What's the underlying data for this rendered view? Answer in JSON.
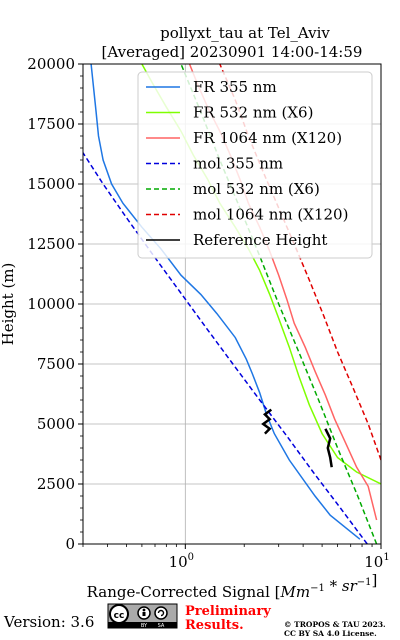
{
  "header": {
    "title_line1": "pollyxt_tau at Tel_Aviv",
    "title_line2": "[Averaged] 20230901 14:00-14:59"
  },
  "footer": {
    "version": "Version: 3.6",
    "cc_by": "BY",
    "cc_sa": "SA",
    "preliminary_line1": "Preliminary",
    "preliminary_line2": "Results.",
    "copyright_line1": "© TROPOS & TAU 2023.",
    "copyright_line2": "CC BY SA 4.0 License.",
    "preliminary_color": "#ff0000"
  },
  "chart_data": {
    "type": "line",
    "title": "pollyxt_tau at Tel_Aviv\n[Averaged] 20230901 14:00-14:59",
    "xlabel": "Range-Corrected Signal [Mm^-1 * sr^-1]",
    "ylabel": "Height (m)",
    "xscale": "log",
    "xlim": [
      0.3,
      10
    ],
    "ylim": [
      0,
      20000
    ],
    "x_major_ticks": [
      1,
      10
    ],
    "x_tick_labels": [
      "10^0",
      "10^1"
    ],
    "y_ticks": [
      0,
      2500,
      5000,
      7500,
      10000,
      12500,
      15000,
      17500,
      20000
    ],
    "y_tick_labels": [
      "0",
      "2500",
      "5000",
      "7500",
      "10000",
      "12500",
      "15000",
      "17500",
      "20000"
    ],
    "grid": true,
    "legend_position": "top-right",
    "series": [
      {
        "name": "FR 355 nm",
        "color": "#1f77e4",
        "style": "solid",
        "points": [
          [
            7.8,
            200
          ],
          [
            5.5,
            1200
          ],
          [
            4.6,
            2000
          ],
          [
            3.4,
            3500
          ],
          [
            2.85,
            4600
          ],
          [
            2.6,
            5400
          ],
          [
            2.4,
            6300
          ],
          [
            2.2,
            7100
          ],
          [
            2.05,
            7700
          ],
          [
            1.8,
            8600
          ],
          [
            1.45,
            9600
          ],
          [
            1.2,
            10400
          ],
          [
            0.95,
            11200
          ],
          [
            0.75,
            12300
          ],
          [
            0.6,
            13200
          ],
          [
            0.48,
            14200
          ],
          [
            0.42,
            15000
          ],
          [
            0.38,
            16000
          ],
          [
            0.36,
            17000
          ],
          [
            0.35,
            18000
          ],
          [
            0.34,
            19000
          ],
          [
            0.33,
            20000
          ]
        ]
      },
      {
        "name": "FR 532 nm (X6)",
        "color": "#7fff00",
        "style": "solid",
        "points": [
          [
            10,
            2500
          ],
          [
            7.5,
            3000
          ],
          [
            6.0,
            3600
          ],
          [
            5.0,
            4600
          ],
          [
            4.3,
            5800
          ],
          [
            3.8,
            7000
          ],
          [
            3.4,
            8200
          ],
          [
            3.0,
            9400
          ],
          [
            2.7,
            10400
          ],
          [
            2.4,
            11400
          ],
          [
            2.1,
            12300
          ],
          [
            1.8,
            13200
          ],
          [
            1.5,
            14200
          ],
          [
            1.3,
            15200
          ],
          [
            1.1,
            16200
          ],
          [
            0.95,
            17200
          ],
          [
            0.8,
            18200
          ],
          [
            0.68,
            19200
          ],
          [
            0.6,
            20000
          ]
        ]
      },
      {
        "name": "FR 1064 nm (X120)",
        "color": "#ff6464",
        "style": "solid",
        "points": [
          [
            9.5,
            1000
          ],
          [
            8.6,
            2400
          ],
          [
            7.5,
            3200
          ],
          [
            6.6,
            4200
          ],
          [
            5.8,
            5200
          ],
          [
            5.2,
            6200
          ],
          [
            4.6,
            7200
          ],
          [
            4.1,
            8200
          ],
          [
            3.6,
            9200
          ],
          [
            3.3,
            10200
          ],
          [
            3.0,
            11200
          ],
          [
            2.7,
            12200
          ],
          [
            2.4,
            13200
          ],
          [
            2.1,
            14200
          ],
          [
            1.9,
            15200
          ],
          [
            1.7,
            16200
          ],
          [
            1.5,
            17200
          ],
          [
            1.3,
            18200
          ],
          [
            1.15,
            19200
          ],
          [
            1.05,
            20000
          ]
        ]
      },
      {
        "name": "mol 355 nm",
        "color": "#0000dd",
        "style": "dashed",
        "points": [
          [
            8.5,
            0
          ],
          [
            6.2,
            1500
          ],
          [
            4.5,
            3000
          ],
          [
            3.3,
            4500
          ],
          [
            2.4,
            6000
          ],
          [
            1.75,
            7500
          ],
          [
            1.28,
            9000
          ],
          [
            0.94,
            10500
          ],
          [
            0.69,
            12000
          ],
          [
            0.51,
            13500
          ],
          [
            0.38,
            15000
          ],
          [
            0.3,
            16300
          ]
        ]
      },
      {
        "name": "mol 532 nm (X6)",
        "color": "#00aa00",
        "style": "dashed",
        "points": [
          [
            9.5,
            0
          ],
          [
            7.6,
            2000
          ],
          [
            6.0,
            4000
          ],
          [
            4.8,
            6000
          ],
          [
            3.8,
            8000
          ],
          [
            3.0,
            10000
          ],
          [
            2.4,
            12000
          ],
          [
            1.9,
            14000
          ],
          [
            1.5,
            16000
          ],
          [
            1.2,
            18000
          ],
          [
            0.95,
            20000
          ]
        ]
      },
      {
        "name": "mol 1064 nm (X120)",
        "color": "#e00000",
        "style": "dashed",
        "points": [
          [
            10,
            3500
          ],
          [
            8.6,
            5000
          ],
          [
            7.2,
            6500
          ],
          [
            6.0,
            8000
          ],
          [
            5.1,
            9500
          ],
          [
            4.3,
            11000
          ],
          [
            3.6,
            12500
          ],
          [
            3.0,
            14000
          ],
          [
            2.5,
            15500
          ],
          [
            2.1,
            17000
          ],
          [
            1.8,
            18500
          ],
          [
            1.5,
            20000
          ]
        ]
      },
      {
        "name": "Reference Height",
        "color": "#000000",
        "style": "solid",
        "segments": [
          [
            [
              2.75,
              5600
            ],
            [
              2.55,
              5400
            ],
            [
              2.7,
              5200
            ],
            [
              2.5,
              5000
            ],
            [
              2.7,
              4800
            ],
            [
              2.55,
              4600
            ]
          ],
          [
            [
              5.6,
              3200
            ],
            [
              5.5,
              3600
            ],
            [
              5.35,
              4000
            ],
            [
              5.5,
              4400
            ],
            [
              5.2,
              4800
            ]
          ]
        ]
      }
    ]
  }
}
